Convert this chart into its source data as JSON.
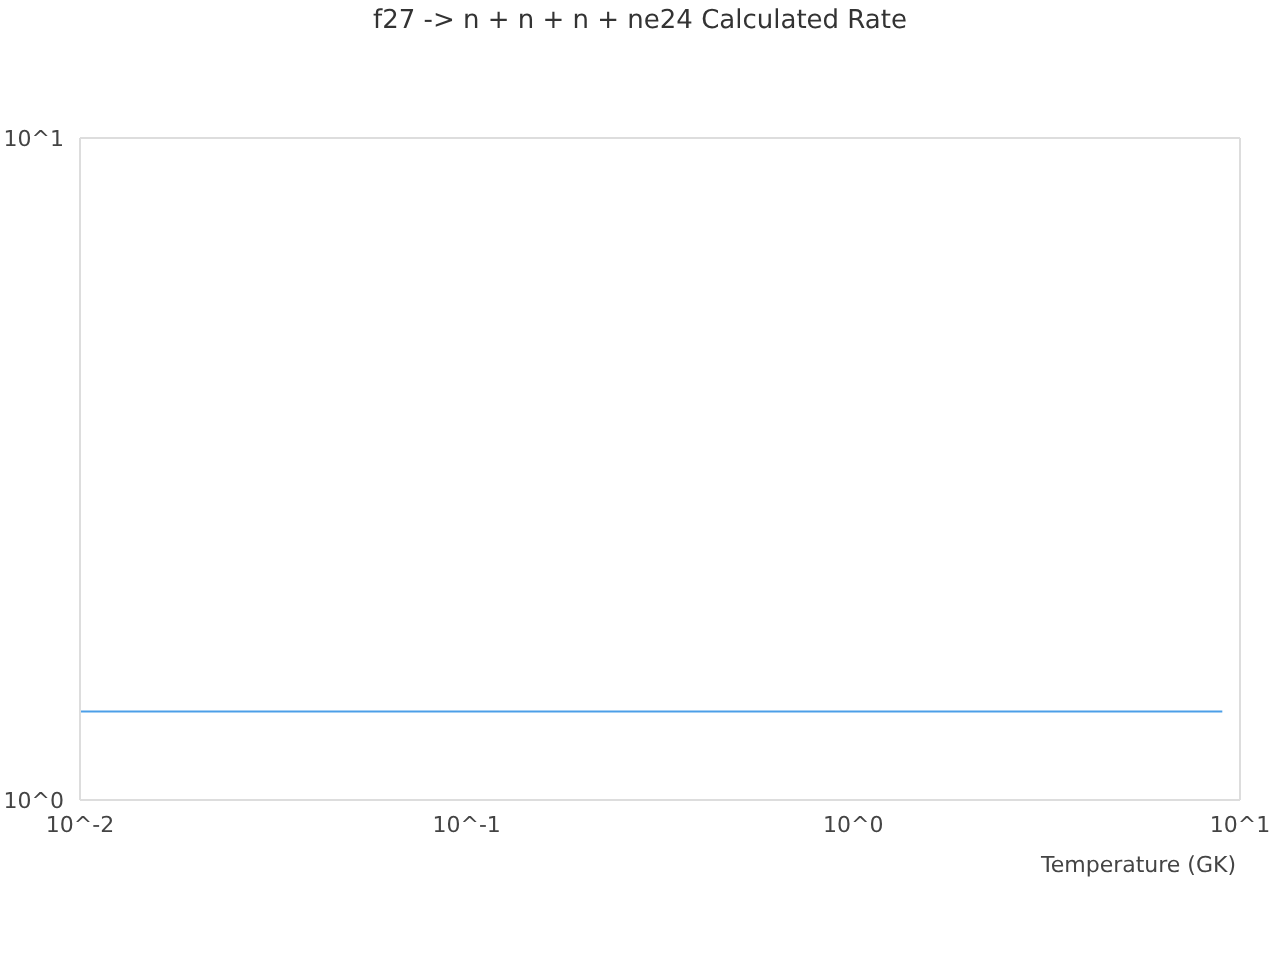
{
  "chart_data": {
    "type": "line",
    "title": "f27 -> n + n + n + ne24 Calculated Rate",
    "xlabel": "Temperature (GK)",
    "x": [
      0.01,
      9
    ],
    "series": [
      {
        "color": "#4c9fe8",
        "values": [
          1.36,
          1.36
        ]
      }
    ],
    "log": "xy",
    "xlim": [
      0.01,
      10
    ],
    "xticks": [
      {
        "value": 0.01,
        "label": "10^-2"
      },
      {
        "value": 0.1,
        "label": "10^-1"
      },
      {
        "value": 1,
        "label": "10^0"
      },
      {
        "value": 10,
        "label": "10^1"
      }
    ],
    "ylim": [
      1,
      10
    ],
    "yticks": [
      {
        "value": 1,
        "label": "10^0"
      },
      {
        "value": 10,
        "label": "10^1"
      }
    ],
    "grid": false,
    "marker": "none"
  }
}
